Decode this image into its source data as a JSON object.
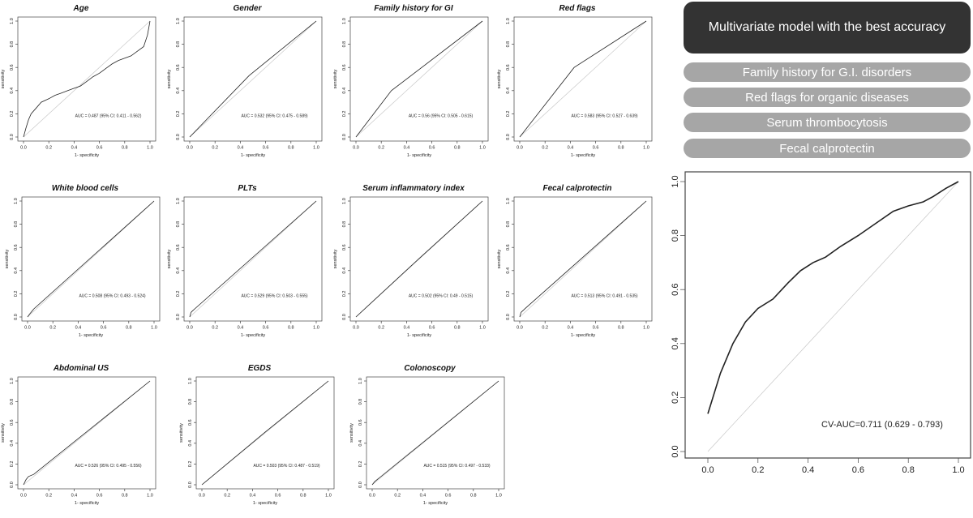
{
  "right_header": "Multivariate model with the best accuracy",
  "predictors": [
    "Family history for G.I. disorders",
    "Red flags for organic diseases",
    "Serum thrombocytosis",
    "Fecal calprotectin"
  ],
  "chart_data": [
    {
      "type": "line",
      "title": "Age",
      "xlabel": "1- specificity",
      "ylabel": "sensitivity",
      "xlim": [
        0,
        1
      ],
      "ylim": [
        0,
        1
      ],
      "ticks": [
        "0.0",
        "0.2",
        "0.4",
        "0.6",
        "0.8",
        "1.0"
      ],
      "annotation": "AUC = 0.487 (95% CI: 0.411 - 0.562)",
      "x": [
        0,
        0.02,
        0.04,
        0.06,
        0.1,
        0.14,
        0.2,
        0.25,
        0.3,
        0.35,
        0.4,
        0.45,
        0.5,
        0.55,
        0.6,
        0.65,
        0.7,
        0.75,
        0.8,
        0.85,
        0.9,
        0.95,
        0.98,
        1.0
      ],
      "y": [
        0,
        0.08,
        0.15,
        0.2,
        0.25,
        0.3,
        0.33,
        0.36,
        0.38,
        0.4,
        0.42,
        0.44,
        0.48,
        0.52,
        0.55,
        0.59,
        0.63,
        0.66,
        0.68,
        0.7,
        0.74,
        0.78,
        0.88,
        1.0
      ]
    },
    {
      "type": "line",
      "title": "Gender",
      "xlabel": "1- specificity",
      "ylabel": "sensitivity",
      "xlim": [
        0,
        1
      ],
      "ylim": [
        0,
        1
      ],
      "ticks": [
        "0.0",
        "0.2",
        "0.4",
        "0.6",
        "0.8",
        "1.0"
      ],
      "annotation": "AUC = 0.532 (95% CI: 0.475 - 0.589)",
      "x": [
        0,
        0.47,
        1
      ],
      "y": [
        0,
        0.53,
        1
      ]
    },
    {
      "type": "line",
      "title": "Family history for GI",
      "xlabel": "1- specificity",
      "ylabel": "sensitivity",
      "xlim": [
        0,
        1
      ],
      "ylim": [
        0,
        1
      ],
      "ticks": [
        "0.0",
        "0.2",
        "0.4",
        "0.6",
        "0.8",
        "1.0"
      ],
      "annotation": "AUC = 0.56 (95% CI: 0.505 - 0.615)",
      "x": [
        0,
        0.28,
        1
      ],
      "y": [
        0,
        0.4,
        1
      ]
    },
    {
      "type": "line",
      "title": "Red flags",
      "xlabel": "1- specificity",
      "ylabel": "sensitivity",
      "xlim": [
        0,
        1
      ],
      "ylim": [
        0,
        1
      ],
      "ticks": [
        "0.0",
        "0.2",
        "0.4",
        "0.6",
        "0.8",
        "1.0"
      ],
      "annotation": "AUC = 0.583 (95% CI: 0.527 - 0.639)",
      "x": [
        0,
        0.43,
        1
      ],
      "y": [
        0,
        0.6,
        1
      ]
    },
    {
      "type": "line",
      "title": "White blood cells",
      "xlabel": "1- specificity",
      "ylabel": "sensitivity",
      "xlim": [
        0,
        1
      ],
      "ylim": [
        0,
        1
      ],
      "ticks": [
        "0.0",
        "0.2",
        "0.4",
        "0.6",
        "0.8",
        "1.0"
      ],
      "annotation": "AUC = 0.508 (95% CI: 0.493 - 0.524)",
      "x": [
        0,
        0.02,
        0.05,
        1
      ],
      "y": [
        0,
        0.03,
        0.07,
        1
      ]
    },
    {
      "type": "line",
      "title": "PLTs",
      "xlabel": "1- specificity",
      "ylabel": "sensitivity",
      "xlim": [
        0,
        1
      ],
      "ylim": [
        0,
        1
      ],
      "ticks": [
        "0.0",
        "0.2",
        "0.4",
        "0.6",
        "0.8",
        "1.0"
      ],
      "annotation": "AUC = 0.529 (95% CI: 0.503 - 0.555)",
      "x": [
        0,
        0.01,
        0.02,
        0.04,
        1
      ],
      "y": [
        0,
        0.04,
        0.05,
        0.07,
        1
      ]
    },
    {
      "type": "line",
      "title": "Serum inflammatory index",
      "xlabel": "1- specificity",
      "ylabel": "sensitivity",
      "xlim": [
        0,
        1
      ],
      "ylim": [
        0,
        1
      ],
      "ticks": [
        "0.0",
        "0.2",
        "0.4",
        "0.6",
        "0.8",
        "1.0"
      ],
      "annotation": "AUC = 0.502 (95% CI: 0.49 - 0.515)",
      "x": [
        0,
        0.5,
        1
      ],
      "y": [
        0,
        0.505,
        1
      ]
    },
    {
      "type": "line",
      "title": "Fecal calprotectin",
      "xlabel": "1- specificity",
      "ylabel": "sensitivity",
      "xlim": [
        0,
        1
      ],
      "ylim": [
        0,
        1
      ],
      "ticks": [
        "0.0",
        "0.2",
        "0.4",
        "0.6",
        "0.8",
        "1.0"
      ],
      "annotation": "AUC = 0.513 (95% CI: 0.491 - 0.535)",
      "x": [
        0,
        0.01,
        0.03,
        0.05,
        1
      ],
      "y": [
        0,
        0.04,
        0.06,
        0.08,
        1
      ]
    },
    {
      "type": "line",
      "title": "Abdominal US",
      "xlabel": "1- specificity",
      "ylabel": "sensitivity",
      "xlim": [
        0,
        1
      ],
      "ylim": [
        0,
        1
      ],
      "ticks": [
        "0.0",
        "0.2",
        "0.4",
        "0.6",
        "0.8",
        "1.0"
      ],
      "annotation": "AUC = 0.526 (95% CI: 0.495 - 0.556)",
      "x": [
        0,
        0.02,
        0.04,
        0.08,
        1
      ],
      "y": [
        0,
        0.05,
        0.08,
        0.1,
        1
      ]
    },
    {
      "type": "line",
      "title": "EGDS",
      "xlabel": "1- specificity",
      "ylabel": "sensitivity",
      "xlim": [
        0,
        1
      ],
      "ylim": [
        0,
        1
      ],
      "ticks": [
        "0.0",
        "0.2",
        "0.4",
        "0.6",
        "0.8",
        "1.0"
      ],
      "annotation": "AUC = 0.503 (95% CI: 0.487 - 0.519)",
      "x": [
        0,
        0.5,
        1
      ],
      "y": [
        0,
        0.507,
        1
      ]
    },
    {
      "type": "line",
      "title": "Colonoscopy",
      "xlabel": "1- specificity",
      "ylabel": "sensitivity",
      "xlim": [
        0,
        1
      ],
      "ylim": [
        0,
        1
      ],
      "ticks": [
        "0.0",
        "0.2",
        "0.4",
        "0.6",
        "0.8",
        "1.0"
      ],
      "annotation": "AUC = 0.515 (95% CI: 0.497 - 0.533)",
      "x": [
        0,
        0.02,
        0.04,
        0.06,
        1
      ],
      "y": [
        0,
        0.03,
        0.05,
        0.07,
        1
      ]
    },
    {
      "type": "line",
      "title": "",
      "xlabel": "",
      "ylabel": "",
      "xlim": [
        0,
        1
      ],
      "ylim": [
        0,
        1
      ],
      "ticks": [
        "0.0",
        "0.2",
        "0.4",
        "0.6",
        "0.8",
        "1.0"
      ],
      "annotation": "CV-AUC=0.711 (0.629 - 0.793)",
      "x": [
        0,
        0.05,
        0.1,
        0.15,
        0.2,
        0.26,
        0.32,
        0.37,
        0.42,
        0.47,
        0.53,
        0.6,
        0.67,
        0.74,
        0.8,
        0.86,
        0.9,
        0.95,
        1.0
      ],
      "y": [
        0.14,
        0.29,
        0.4,
        0.48,
        0.53,
        0.565,
        0.625,
        0.67,
        0.7,
        0.72,
        0.76,
        0.8,
        0.845,
        0.89,
        0.91,
        0.925,
        0.945,
        0.975,
        1.0
      ]
    }
  ]
}
